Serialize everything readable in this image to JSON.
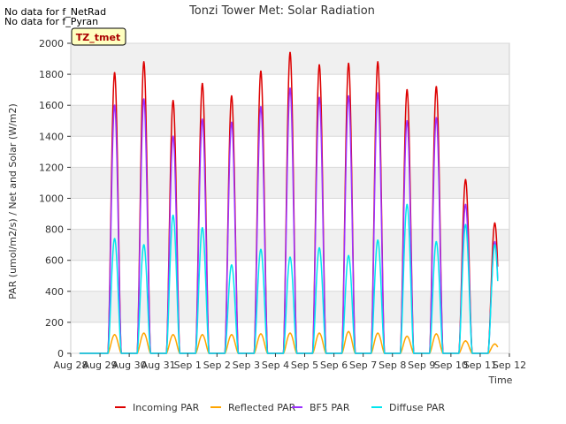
{
  "notes": [
    "No data for f_NetRad",
    "No data for f_Pyran"
  ],
  "chart_data": {
    "type": "line",
    "title": "Tonzi Tower Met: Solar Radiation",
    "xlabel": "Time",
    "ylabel": "PAR (umol/m2/s) / Net and Solar (W/m2)",
    "annotation": "TZ_tmet",
    "x_ticks": [
      "Aug 28",
      "Aug 29",
      "Aug 30",
      "Aug 31",
      "Sep 1",
      "Sep 2",
      "Sep 3",
      "Sep 4",
      "Sep 5",
      "Sep 6",
      "Sep 7",
      "Sep 8",
      "Sep 9",
      "Sep 10",
      "Sep 11",
      "Sep 12"
    ],
    "y_ticks": [
      0,
      200,
      400,
      600,
      800,
      1000,
      1200,
      1400,
      1600,
      1800,
      2000
    ],
    "ylim": [
      0,
      2000
    ],
    "grid": true,
    "legend_position": "bottom",
    "day_noon_x": [
      1.5,
      2.5,
      3.5,
      4.5,
      5.5,
      6.5,
      7.5,
      8.5,
      9.5,
      10.5,
      11.5,
      12.5,
      13.5,
      14.5
    ],
    "series": [
      {
        "name": "Incoming PAR",
        "color": "#dd0000",
        "values": [
          1810,
          1880,
          1630,
          1740,
          1660,
          1820,
          1940,
          1860,
          1870,
          1880,
          1700,
          1720,
          1120,
          840
        ]
      },
      {
        "name": "Reflected PAR",
        "color": "#ffa500",
        "values": [
          120,
          130,
          120,
          120,
          120,
          125,
          130,
          130,
          140,
          130,
          110,
          125,
          80,
          60
        ]
      },
      {
        "name": "BF5 PAR",
        "color": "#9b30ff",
        "values": [
          1600,
          1640,
          1400,
          1510,
          1490,
          1590,
          1710,
          1650,
          1660,
          1680,
          1500,
          1520,
          960,
          720
        ]
      },
      {
        "name": "Diffuse PAR",
        "color": "#00e5ee",
        "values": [
          740,
          700,
          890,
          810,
          570,
          670,
          620,
          680,
          630,
          730,
          960,
          720,
          830,
          700
        ]
      }
    ]
  }
}
